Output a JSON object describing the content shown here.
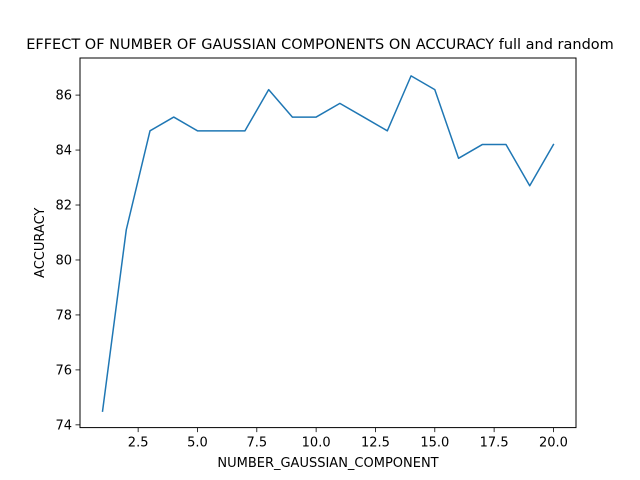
{
  "chart_data": {
    "type": "line",
    "title": "EFFECT OF NUMBER OF GAUSSIAN COMPONENTS ON ACCURACY full and random",
    "xlabel": "NUMBER_GAUSSIAN_COMPONENT",
    "ylabel": "ACCURACY",
    "xlim": [
      0.05,
      20.95
    ],
    "ylim": [
      73.9,
      87.35
    ],
    "xticks": [
      2.5,
      5.0,
      7.5,
      10.0,
      12.5,
      15.0,
      17.5,
      20.0
    ],
    "xtick_labels": [
      "2.5",
      "5.0",
      "7.5",
      "10.0",
      "12.5",
      "15.0",
      "17.5",
      "20.0"
    ],
    "yticks": [
      74,
      76,
      78,
      80,
      82,
      84,
      86
    ],
    "ytick_labels": [
      "74",
      "76",
      "78",
      "80",
      "82",
      "84",
      "86"
    ],
    "grid": false,
    "series": [
      {
        "color": "#1f77b4",
        "x": [
          1,
          2,
          3,
          4,
          5,
          6,
          7,
          8,
          9,
          10,
          11,
          12,
          13,
          14,
          15,
          16,
          17,
          18,
          19,
          20
        ],
        "y": [
          74.5,
          81.1,
          84.7,
          85.2,
          84.7,
          84.7,
          84.7,
          86.2,
          85.2,
          85.2,
          85.7,
          85.2,
          84.7,
          86.7,
          86.2,
          83.7,
          84.2,
          84.2,
          82.7,
          84.2
        ]
      }
    ]
  }
}
